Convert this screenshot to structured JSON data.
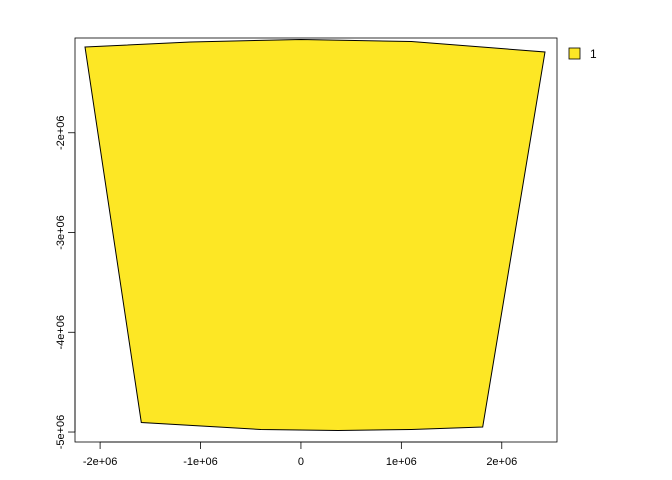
{
  "chart_data": {
    "type": "map",
    "title": "",
    "xlabel": "",
    "ylabel": "",
    "xlim": [
      -2250000,
      2550000
    ],
    "ylim": [
      -5100000,
      -1050000
    ],
    "x_ticks": [
      {
        "value": -2000000,
        "label": "-2e+06"
      },
      {
        "value": -1000000,
        "label": "-1e+06"
      },
      {
        "value": 0,
        "label": "0"
      },
      {
        "value": 1000000,
        "label": "1e+06"
      },
      {
        "value": 2000000,
        "label": "2e+06"
      }
    ],
    "y_ticks": [
      {
        "value": -2000000,
        "label": "-2e+06"
      },
      {
        "value": -3000000,
        "label": "-3e+06"
      },
      {
        "value": -4000000,
        "label": "-4e+06"
      },
      {
        "value": -5000000,
        "label": "-5e+06"
      }
    ],
    "region": {
      "value": "1",
      "fill": "#FDE725",
      "stroke": "#000000",
      "outline": [
        [
          -2150000,
          -1140000
        ],
        [
          -1100000,
          -1090000
        ],
        [
          0,
          -1065000
        ],
        [
          1100000,
          -1085000
        ],
        [
          2430000,
          -1190000
        ],
        [
          1810000,
          -4950000
        ],
        [
          1100000,
          -4975000
        ],
        [
          370000,
          -4985000
        ],
        [
          -400000,
          -4975000
        ],
        [
          -1590000,
          -4905000
        ],
        [
          -2150000,
          -1140000
        ]
      ]
    },
    "legend": {
      "position": "top-right",
      "entries": [
        {
          "label": "1",
          "color": "#FDE725"
        }
      ]
    }
  }
}
